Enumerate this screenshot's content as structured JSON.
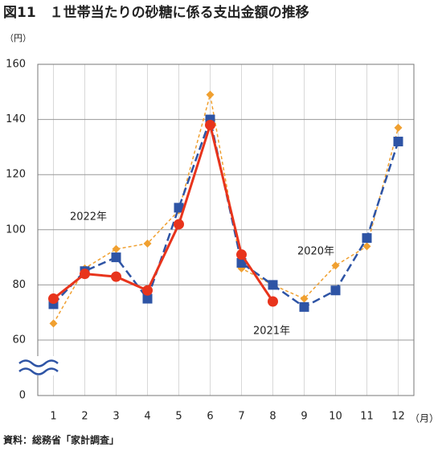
{
  "chart_data": {
    "type": "line",
    "title": "図11　１世帯当たりの砂糖に係る支出金額の推移",
    "y_unit": "（円）",
    "x_unit": "（月）",
    "source": "資料：総務省「家計調査」",
    "categories": [
      "1",
      "2",
      "3",
      "4",
      "5",
      "6",
      "7",
      "8",
      "9",
      "10",
      "11",
      "12"
    ],
    "series": [
      {
        "name": "2022年",
        "color": "#e8341c",
        "style": "solid",
        "marker": "circle",
        "values": [
          75,
          84,
          83,
          78,
          102,
          138,
          91,
          74,
          null,
          null,
          null,
          null
        ]
      },
      {
        "name": "2021年",
        "color": "#2e54a5",
        "style": "dashed",
        "marker": "square",
        "values": [
          73,
          85,
          90,
          75,
          108,
          140,
          88,
          80,
          72,
          78,
          97,
          132
        ]
      },
      {
        "name": "2020年",
        "color": "#f0a030",
        "style": "dotted",
        "marker": "diamond",
        "values": [
          66,
          86,
          93,
          95,
          107,
          149,
          86,
          80,
          75,
          87,
          94,
          137
        ]
      }
    ],
    "ylim": [
      0,
      160
    ],
    "y_break": [
      0,
      60
    ],
    "yticks": [
      0,
      60,
      80,
      100,
      120,
      140,
      160
    ],
    "grid": true
  }
}
